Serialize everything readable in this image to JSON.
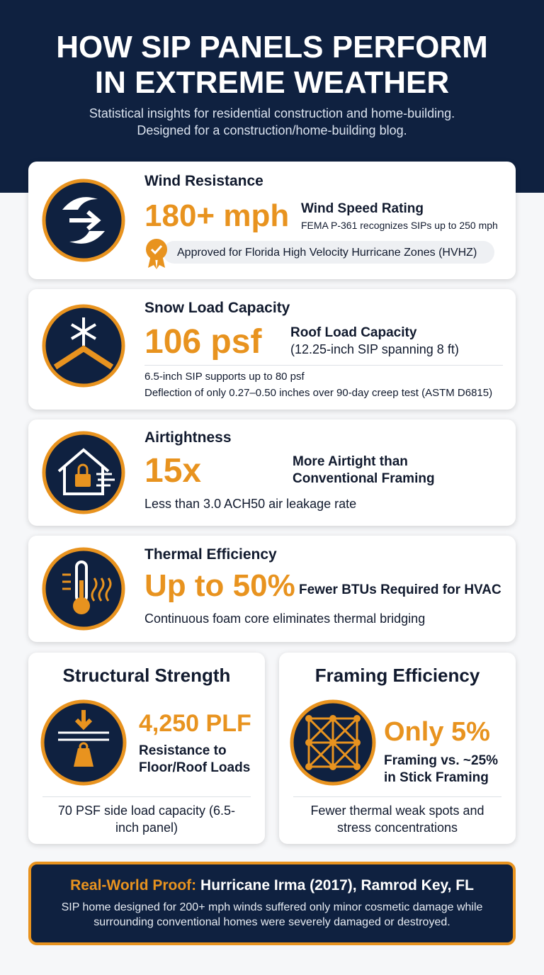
{
  "header": {
    "title_lines": [
      "HOW SIP PANELS PERFORM",
      "IN EXTREME WEATHER"
    ],
    "subtitle_lines": [
      "Statistical insights for residential construction and home-building.",
      "Designed for a construction/home-building blog."
    ]
  },
  "cards": [
    {
      "title": "Wind Resistance",
      "stat": "180+ mph",
      "label": "Wind Speed Rating",
      "note": "FEMA P-361 recognizes SIPs up to 250 mph",
      "badge": "Approved for Florida High Velocity Hurricane Zones (HVHZ)"
    },
    {
      "title": "Snow Load Capacity",
      "stat": "106 psf",
      "label": "Roof Load Capacity",
      "note": "(12.25-inch SIP spanning 8 ft)",
      "details": [
        "6.5-inch SIP supports up to 80 psf",
        "Deflection of only 0.27–0.50 inches over 90-day creep test (ASTM D6815)"
      ]
    },
    {
      "title": "Airtightness",
      "stat": "15x",
      "label": "More Airtight than Conventional Framing",
      "detail": "Less than 3.0 ACH50 air leakage rate"
    },
    {
      "title": "Thermal Efficiency",
      "stat": "Up to 50%",
      "label": "Fewer BTUs Required for HVAC",
      "detail": "Continuous foam core eliminates thermal bridging"
    },
    {
      "title": "Structural Strength",
      "stat": "4,250 PLF",
      "label": "Resistance to Floor/Roof Loads",
      "detail": "70 PSF side load capacity (6.5-inch panel)"
    },
    {
      "title": "Framing Efficiency",
      "stat": "Only 5%",
      "label": "Framing vs. ~25% in Stick Framing",
      "detail": "Fewer thermal weak spots and stress concentrations"
    }
  ],
  "footer": {
    "lead": "Real-World Proof:",
    "headline": "Hurricane Irma (2017), Ramrod Key, FL",
    "text": "SIP home designed for 200+ mph winds suffered only minor cosmetic damage while surrounding conventional homes were severely damaged or destroyed."
  }
}
